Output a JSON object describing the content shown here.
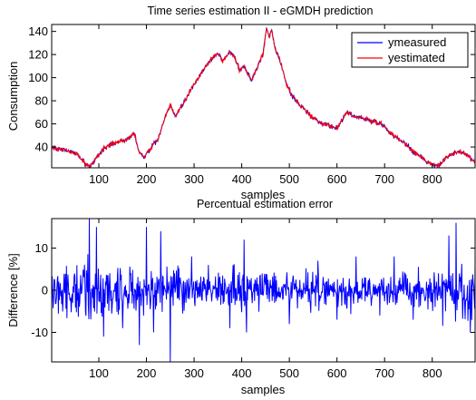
{
  "chart_data": [
    {
      "type": "line",
      "title": "Time series estimation II - eGMDH prediction",
      "xlabel": "samples",
      "ylabel": "Consumption",
      "xlim": [
        1,
        890
      ],
      "ylim": [
        22,
        146
      ],
      "xticks": [
        100,
        200,
        300,
        400,
        500,
        600,
        700,
        800
      ],
      "yticks": [
        40,
        60,
        80,
        100,
        120,
        140
      ],
      "grid": false,
      "legend_position": "top-right",
      "series": [
        {
          "name": "ymeasured",
          "color": "#0000ff",
          "anchors": [
            [
              1,
              40
            ],
            [
              20,
              38
            ],
            [
              40,
              36
            ],
            [
              55,
              33
            ],
            [
              70,
              26
            ],
            [
              80,
              23
            ],
            [
              90,
              28
            ],
            [
              100,
              33
            ],
            [
              110,
              38
            ],
            [
              120,
              41
            ],
            [
              140,
              44
            ],
            [
              160,
              47
            ],
            [
              175,
              51
            ],
            [
              185,
              35
            ],
            [
              195,
              31
            ],
            [
              205,
              37
            ],
            [
              215,
              43
            ],
            [
              225,
              47
            ],
            [
              240,
              67
            ],
            [
              250,
              77
            ],
            [
              260,
              66
            ],
            [
              270,
              73
            ],
            [
              280,
              80
            ],
            [
              300,
              94
            ],
            [
              320,
              107
            ],
            [
              340,
              118
            ],
            [
              350,
              121
            ],
            [
              360,
              114
            ],
            [
              375,
              122
            ],
            [
              385,
              118
            ],
            [
              395,
              106
            ],
            [
              405,
              110
            ],
            [
              415,
              101
            ],
            [
              420,
              98
            ],
            [
              430,
              106
            ],
            [
              445,
              121
            ],
            [
              452,
              143
            ],
            [
              458,
              136
            ],
            [
              463,
              141
            ],
            [
              470,
              125
            ],
            [
              480,
              115
            ],
            [
              490,
              100
            ],
            [
              495,
              94
            ],
            [
              505,
              85
            ],
            [
              520,
              77
            ],
            [
              540,
              69
            ],
            [
              560,
              62
            ],
            [
              580,
              59
            ],
            [
              600,
              56
            ],
            [
              610,
              62
            ],
            [
              615,
              67
            ],
            [
              620,
              70
            ],
            [
              630,
              68
            ],
            [
              640,
              66
            ],
            [
              660,
              64
            ],
            [
              680,
              62
            ],
            [
              700,
              58
            ],
            [
              710,
              52
            ],
            [
              720,
              50
            ],
            [
              730,
              46
            ],
            [
              740,
              44
            ],
            [
              750,
              40
            ],
            [
              760,
              36
            ],
            [
              770,
              33
            ],
            [
              780,
              31
            ],
            [
              790,
              27
            ],
            [
              800,
              24
            ],
            [
              815,
              25
            ],
            [
              825,
              29
            ],
            [
              835,
              32
            ],
            [
              845,
              34
            ],
            [
              855,
              36
            ],
            [
              870,
              34
            ],
            [
              890,
              27
            ]
          ]
        },
        {
          "name": "yestimated",
          "color": "#ff0000"
        }
      ]
    },
    {
      "type": "line",
      "title": "Percentual estimation error",
      "xlabel": "samples",
      "ylabel": "Difference [%]",
      "xlim": [
        1,
        890
      ],
      "ylim": [
        -17,
        17
      ],
      "xticks": [
        100,
        200,
        300,
        400,
        500,
        600,
        700,
        800
      ],
      "yticks": [
        -10,
        0,
        10
      ],
      "grid": false,
      "series": [
        {
          "color": "#0000ff",
          "spikes": [
            [
              80,
              17
            ],
            [
              95,
              15
            ],
            [
              110,
              -11
            ],
            [
              150,
              -9
            ],
            [
              185,
              -13
            ],
            [
              200,
              15
            ],
            [
              215,
              -10
            ],
            [
              230,
              14
            ],
            [
              250,
              -17
            ],
            [
              295,
              8
            ],
            [
              330,
              6
            ],
            [
              375,
              -9
            ],
            [
              405,
              12
            ],
            [
              410,
              -10
            ],
            [
              500,
              -8
            ],
            [
              560,
              7
            ],
            [
              600,
              -7
            ],
            [
              640,
              8
            ],
            [
              690,
              -6
            ],
            [
              720,
              8
            ],
            [
              760,
              -7
            ],
            [
              835,
              13
            ],
            [
              850,
              16
            ],
            [
              880,
              -10
            ],
            [
              890,
              6
            ]
          ]
        }
      ]
    }
  ]
}
